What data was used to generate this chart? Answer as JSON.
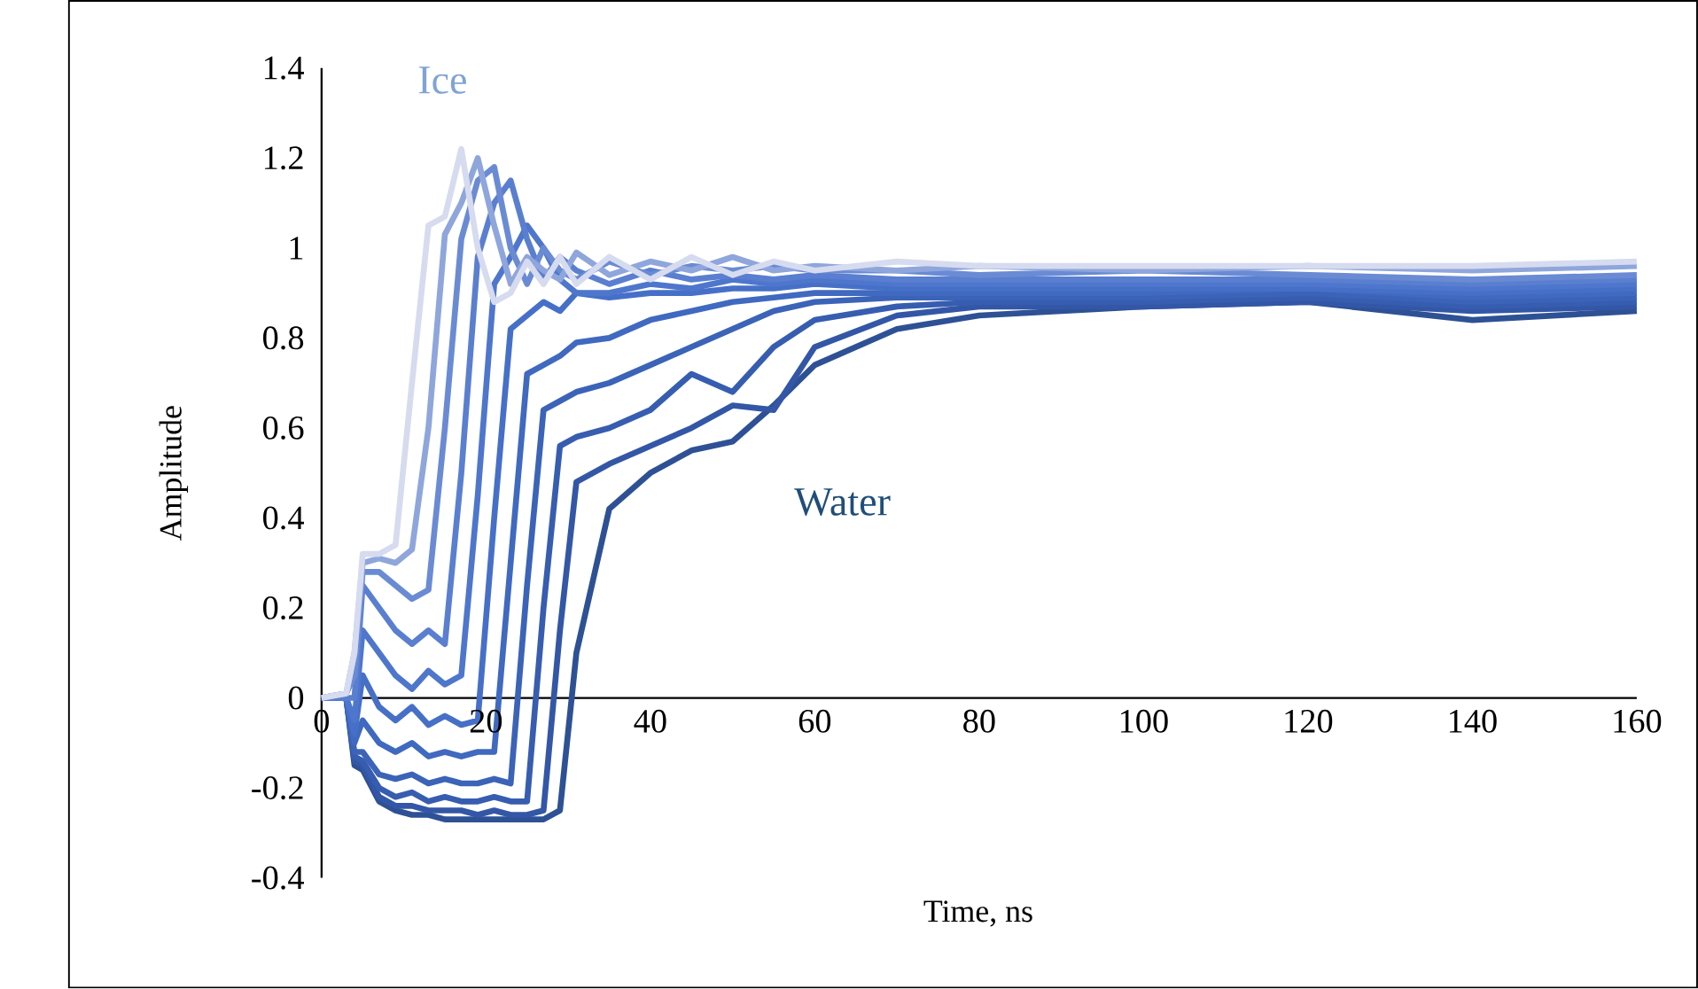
{
  "chart_data": {
    "type": "line",
    "xlabel": "Time, ns",
    "ylabel": "Amplitude",
    "x": [
      0,
      3,
      4,
      5,
      7,
      9,
      11,
      13,
      15,
      17,
      19,
      21,
      23,
      25,
      27,
      29,
      31,
      35,
      40,
      45,
      50,
      55,
      60,
      70,
      80,
      100,
      120,
      140,
      160
    ],
    "series": [
      {
        "color": "#d6dbef",
        "values": [
          0,
          0.01,
          0.1,
          0.32,
          0.32,
          0.34,
          0.7,
          1.05,
          1.07,
          1.22,
          1.0,
          0.88,
          0.9,
          0.97,
          0.92,
          0.98,
          0.92,
          0.98,
          0.93,
          0.98,
          0.94,
          0.97,
          0.95,
          0.97,
          0.96,
          0.96,
          0.96,
          0.96,
          0.97
        ]
      },
      {
        "color": "#8fa6dc",
        "values": [
          0,
          0.01,
          0.1,
          0.3,
          0.31,
          0.3,
          0.33,
          0.6,
          1.03,
          1.1,
          1.2,
          1.05,
          0.92,
          0.98,
          0.95,
          0.93,
          0.99,
          0.94,
          0.97,
          0.95,
          0.98,
          0.95,
          0.96,
          0.95,
          0.96,
          0.95,
          0.96,
          0.95,
          0.96
        ]
      },
      {
        "color": "#6a8bd4",
        "values": [
          0,
          0.01,
          0.05,
          0.28,
          0.28,
          0.25,
          0.22,
          0.24,
          0.6,
          1.02,
          1.15,
          1.18,
          1.0,
          0.92,
          1.0,
          0.95,
          0.93,
          0.97,
          0.94,
          0.96,
          0.95,
          0.96,
          0.95,
          0.95,
          0.94,
          0.95,
          0.94,
          0.93,
          0.94
        ]
      },
      {
        "color": "#5a7fd0",
        "values": [
          0,
          0,
          0,
          0.25,
          0.2,
          0.15,
          0.12,
          0.15,
          0.12,
          0.5,
          0.98,
          1.1,
          1.15,
          1.02,
          0.93,
          0.98,
          0.95,
          0.92,
          0.95,
          0.93,
          0.94,
          0.93,
          0.94,
          0.93,
          0.93,
          0.93,
          0.93,
          0.92,
          0.93
        ]
      },
      {
        "color": "#4e76cc",
        "values": [
          0,
          0,
          -0.05,
          0.15,
          0.1,
          0.05,
          0.02,
          0.06,
          0.03,
          0.05,
          0.45,
          0.92,
          0.98,
          1.05,
          1.0,
          0.93,
          0.9,
          0.9,
          0.92,
          0.91,
          0.93,
          0.92,
          0.93,
          0.92,
          0.92,
          0.92,
          0.92,
          0.91,
          0.92
        ]
      },
      {
        "color": "#4670c8",
        "values": [
          0,
          0,
          -0.08,
          0.05,
          -0.02,
          -0.05,
          -0.02,
          -0.06,
          -0.04,
          -0.06,
          -0.05,
          0.4,
          0.82,
          0.85,
          0.88,
          0.86,
          0.9,
          0.89,
          0.9,
          0.9,
          0.91,
          0.91,
          0.92,
          0.91,
          0.91,
          0.91,
          0.91,
          0.9,
          0.91
        ]
      },
      {
        "color": "#4069c0",
        "values": [
          0,
          0,
          -0.1,
          -0.05,
          -0.1,
          -0.12,
          -0.1,
          -0.13,
          -0.12,
          -0.13,
          -0.12,
          -0.12,
          0.3,
          0.72,
          0.74,
          0.76,
          0.79,
          0.8,
          0.84,
          0.86,
          0.88,
          0.89,
          0.9,
          0.9,
          0.9,
          0.9,
          0.91,
          0.89,
          0.9
        ]
      },
      {
        "color": "#3b63b8",
        "values": [
          0,
          0,
          -0.12,
          -0.12,
          -0.17,
          -0.18,
          -0.17,
          -0.19,
          -0.18,
          -0.19,
          -0.19,
          -0.18,
          -0.19,
          0.25,
          0.64,
          0.66,
          0.68,
          0.7,
          0.74,
          0.78,
          0.82,
          0.86,
          0.88,
          0.89,
          0.89,
          0.89,
          0.9,
          0.88,
          0.89
        ]
      },
      {
        "color": "#375db0",
        "values": [
          0,
          0,
          -0.13,
          -0.14,
          -0.2,
          -0.22,
          -0.21,
          -0.23,
          -0.22,
          -0.23,
          -0.23,
          -0.22,
          -0.23,
          -0.23,
          0.2,
          0.56,
          0.58,
          0.6,
          0.64,
          0.72,
          0.68,
          0.78,
          0.84,
          0.87,
          0.88,
          0.88,
          0.89,
          0.87,
          0.88
        ]
      },
      {
        "color": "#3357a6",
        "values": [
          0,
          0,
          -0.14,
          -0.15,
          -0.22,
          -0.24,
          -0.24,
          -0.25,
          -0.25,
          -0.25,
          -0.26,
          -0.25,
          -0.26,
          -0.26,
          -0.25,
          0.15,
          0.48,
          0.52,
          0.56,
          0.6,
          0.65,
          0.64,
          0.78,
          0.85,
          0.87,
          0.87,
          0.88,
          0.86,
          0.87
        ]
      },
      {
        "color": "#2e5195",
        "values": [
          0,
          0,
          -0.15,
          -0.16,
          -0.23,
          -0.25,
          -0.26,
          -0.26,
          -0.27,
          -0.27,
          -0.27,
          -0.27,
          -0.27,
          -0.27,
          -0.27,
          -0.25,
          0.1,
          0.42,
          0.5,
          0.55,
          0.57,
          0.65,
          0.74,
          0.82,
          0.85,
          0.87,
          0.88,
          0.84,
          0.86
        ]
      }
    ],
    "xlim": [
      0,
      160
    ],
    "ylim": [
      -0.4,
      1.4
    ],
    "xticks": [
      0,
      20,
      40,
      60,
      80,
      100,
      120,
      140,
      160
    ],
    "yticks": [
      -0.4,
      -0.2,
      0,
      0.2,
      0.4,
      0.6,
      0.8,
      1,
      1.2,
      1.4
    ],
    "annotations": [
      "Ice",
      "Water"
    ]
  }
}
